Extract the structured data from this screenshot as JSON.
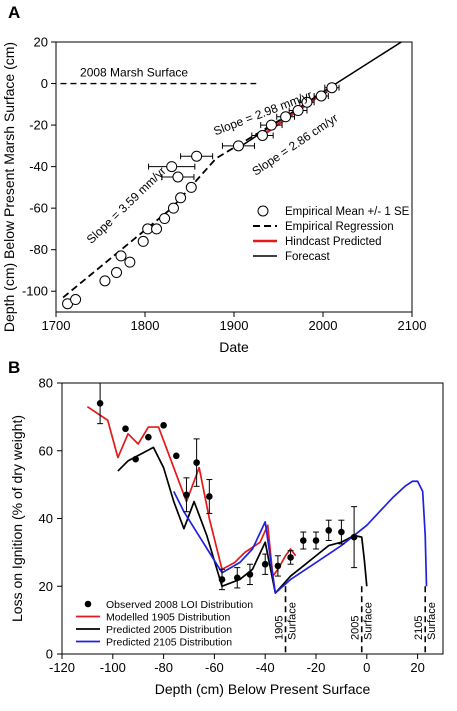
{
  "chart_data": [
    {
      "panel_label": "A",
      "type": "scatter",
      "xlabel": "Date",
      "ylabel": "Depth (cm) Below Present Marsh Surface (cm)",
      "xlim": [
        1700,
        2100
      ],
      "ylim": [
        -110,
        20
      ],
      "xticks": [
        1700,
        1800,
        1900,
        2000,
        2100
      ],
      "yticks": [
        -100,
        -80,
        -60,
        -40,
        -20,
        0,
        20
      ],
      "series": [
        {
          "name": "Empirical Mean +/- 1 SE",
          "marker": "open-circle",
          "points": [
            {
              "x": 1713,
              "y": -106,
              "xerr": 0
            },
            {
              "x": 1722,
              "y": -104,
              "xerr": 0
            },
            {
              "x": 1755,
              "y": -95,
              "xerr": 0
            },
            {
              "x": 1768,
              "y": -91,
              "xerr": 0
            },
            {
              "x": 1773,
              "y": -83,
              "xerr": 0
            },
            {
              "x": 1783,
              "y": -86,
              "xerr": 0
            },
            {
              "x": 1798,
              "y": -76,
              "xerr": 0
            },
            {
              "x": 1803,
              "y": -70,
              "xerr": 0
            },
            {
              "x": 1813,
              "y": -70,
              "xerr": 0
            },
            {
              "x": 1822,
              "y": -65,
              "xerr": 0
            },
            {
              "x": 1832,
              "y": -60,
              "xerr": 0
            },
            {
              "x": 1840,
              "y": -55,
              "xerr": 0
            },
            {
              "x": 1852,
              "y": -50,
              "xerr": 0
            },
            {
              "x": 1837,
              "y": -45,
              "xerr": 18
            },
            {
              "x": 1830,
              "y": -40,
              "xerr": 26
            },
            {
              "x": 1858,
              "y": -35,
              "xerr": 18
            },
            {
              "x": 1905,
              "y": -30,
              "xerr": 18
            },
            {
              "x": 1932,
              "y": -25,
              "xerr": 12
            },
            {
              "x": 1942,
              "y": -20,
              "xerr": 12
            },
            {
              "x": 1958,
              "y": -16,
              "xerr": 10
            },
            {
              "x": 1972,
              "y": -13,
              "xerr": 10
            },
            {
              "x": 1982,
              "y": -9,
              "xerr": 8
            },
            {
              "x": 1998,
              "y": -6,
              "xerr": 8
            },
            {
              "x": 2010,
              "y": -2,
              "xerr": 8
            }
          ]
        },
        {
          "name": "Empirical Regression",
          "style": "dashed",
          "color": "#000000",
          "points": [
            [
              1708,
              -103
            ],
            [
              1830,
              -60
            ],
            [
              1880,
              -36
            ],
            [
              2012,
              -2
            ]
          ]
        },
        {
          "name": "Hindcast Predicted",
          "style": "solid",
          "color": "#e31a1c",
          "points": [
            [
              1935,
              -24
            ],
            [
              2012,
              -1
            ]
          ]
        },
        {
          "name": "Forecast",
          "style": "solid",
          "color": "#000000",
          "points": [
            [
              1905,
              -31
            ],
            [
              2000,
              -4
            ],
            [
              2088,
              20
            ]
          ]
        }
      ],
      "reference_line": {
        "label": "2008 Marsh Surface",
        "y": 0,
        "x": [
          1705,
          1925
        ]
      },
      "annotations": [
        {
          "text": "Slope = 3.59 mm/yr",
          "x": 1782,
          "y": -60,
          "angle": -44
        },
        {
          "text": "Slope = 2.98 mm/yr",
          "x": 1934,
          "y": -16,
          "angle": -21
        },
        {
          "text": "Slope = 2.86 cm/yr",
          "x": 1971,
          "y": -31,
          "angle": -34
        }
      ],
      "legend": {
        "position": "lower-right"
      }
    },
    {
      "panel_label": "B",
      "type": "line",
      "xlabel": "Depth (cm) Below Present Surface",
      "ylabel": "Loss on Ignition (% of dry weight)",
      "xlim": [
        -120,
        30
      ],
      "ylim": [
        0,
        80
      ],
      "xticks": [
        -120,
        -100,
        -80,
        -60,
        -40,
        -20,
        0,
        20
      ],
      "yticks": [
        0,
        20,
        40,
        60,
        80
      ],
      "observed": {
        "name": "Observed 2008 LOI Distribution",
        "points": [
          {
            "x": -105,
            "y": 74,
            "err": 6
          },
          {
            "x": -95,
            "y": 66.5,
            "err": 0
          },
          {
            "x": -91,
            "y": 57.5,
            "err": 0
          },
          {
            "x": -86,
            "y": 64,
            "err": 0
          },
          {
            "x": -80,
            "y": 67.5,
            "err": 0
          },
          {
            "x": -75,
            "y": 58.5,
            "err": 0
          },
          {
            "x": -71,
            "y": 47,
            "err": 5
          },
          {
            "x": -67,
            "y": 56.5,
            "err": 7
          },
          {
            "x": -62,
            "y": 46.5,
            "err": 5
          },
          {
            "x": -57,
            "y": 22,
            "err": 3
          },
          {
            "x": -51,
            "y": 22.5,
            "err": 3
          },
          {
            "x": -46,
            "y": 23.5,
            "err": 3
          },
          {
            "x": -40,
            "y": 26.5,
            "err": 3
          },
          {
            "x": -35,
            "y": 26,
            "err": 3
          },
          {
            "x": -30,
            "y": 28.5,
            "err": 2
          },
          {
            "x": -25,
            "y": 33.5,
            "err": 2.5
          },
          {
            "x": -20,
            "y": 33.5,
            "err": 2.5
          },
          {
            "x": -15,
            "y": 36.5,
            "err": 3
          },
          {
            "x": -10,
            "y": 36,
            "err": 3.5
          },
          {
            "x": -5,
            "y": 34.5,
            "err": 9
          }
        ]
      },
      "series": [
        {
          "name": "Modelled 1905 Distribution",
          "color": "#e31a1c",
          "points": [
            [
              -110,
              73
            ],
            [
              -102,
              69
            ],
            [
              -98,
              58
            ],
            [
              -94,
              65
            ],
            [
              -90,
              62
            ],
            [
              -86,
              67
            ],
            [
              -82,
              67
            ],
            [
              -76,
              55
            ],
            [
              -71,
              45
            ],
            [
              -66,
              55
            ],
            [
              -62,
              40
            ],
            [
              -57,
              25
            ],
            [
              -52,
              27
            ],
            [
              -48,
              30
            ],
            [
              -42,
              33
            ],
            [
              -39,
              38
            ],
            [
              -37,
              23
            ],
            [
              -35,
              25
            ],
            [
              -32,
              29
            ],
            [
              -30,
              31
            ],
            [
              -28,
              29
            ]
          ]
        },
        {
          "name": "Predicted 2005 Distribution",
          "color": "#000000",
          "points": [
            [
              -98,
              54
            ],
            [
              -94,
              57
            ],
            [
              -89,
              59
            ],
            [
              -84,
              61
            ],
            [
              -80,
              55
            ],
            [
              -76,
              45
            ],
            [
              -72,
              37
            ],
            [
              -68,
              45
            ],
            [
              -63,
              35
            ],
            [
              -57,
              20
            ],
            [
              -50,
              22
            ],
            [
              -45,
              25
            ],
            [
              -40,
              33
            ],
            [
              -36,
              18
            ],
            [
              -30,
              23
            ],
            [
              -25,
              26
            ],
            [
              -20,
              29
            ],
            [
              -15,
              32
            ],
            [
              -10,
              33
            ],
            [
              -5,
              35
            ],
            [
              -2,
              34.5
            ],
            [
              -1,
              28
            ],
            [
              0,
              20
            ]
          ]
        },
        {
          "name": "Predicted 2105 Distribution",
          "color": "#1f22e0",
          "points": [
            [
              -76,
              48
            ],
            [
              -72,
              42
            ],
            [
              -67,
              36
            ],
            [
              -62,
              30
            ],
            [
              -57,
              24
            ],
            [
              -50,
              27
            ],
            [
              -45,
              31
            ],
            [
              -40,
              39
            ],
            [
              -36,
              18
            ],
            [
              -30,
              22
            ],
            [
              -20,
              27
            ],
            [
              -10,
              32
            ],
            [
              0,
              38
            ],
            [
              5,
              42
            ],
            [
              10,
              46
            ],
            [
              15,
              49.5
            ],
            [
              18,
              51
            ],
            [
              20,
              51
            ],
            [
              22,
              48
            ],
            [
              23,
              35
            ],
            [
              23.5,
              20
            ]
          ]
        }
      ],
      "surface_markers": [
        {
          "label": "1905 Surface",
          "x": -32
        },
        {
          "label": "2005 Surface",
          "x": -2
        },
        {
          "label": "2105 Surface",
          "x": 23
        }
      ],
      "legend": {
        "position": "lower-left"
      }
    }
  ]
}
